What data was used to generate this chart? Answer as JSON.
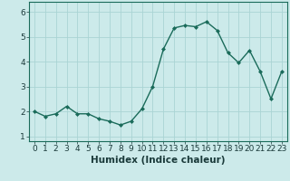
{
  "x": [
    0,
    1,
    2,
    3,
    4,
    5,
    6,
    7,
    8,
    9,
    10,
    11,
    12,
    13,
    14,
    15,
    16,
    17,
    18,
    19,
    20,
    21,
    22,
    23
  ],
  "y": [
    2.0,
    1.8,
    1.9,
    2.2,
    1.9,
    1.9,
    1.7,
    1.6,
    1.45,
    1.6,
    2.1,
    3.0,
    4.5,
    5.35,
    5.45,
    5.4,
    5.6,
    5.25,
    4.35,
    3.95,
    4.45,
    3.6,
    2.5,
    3.6
  ],
  "line_color": "#1a6b5a",
  "marker": "D",
  "marker_size": 2,
  "bg_color": "#cceaea",
  "grid_color": "#aad4d4",
  "xlabel": "Humidex (Indice chaleur)",
  "ylim": [
    0.8,
    6.4
  ],
  "yticks": [
    1,
    2,
    3,
    4,
    5,
    6
  ],
  "xticks": [
    0,
    1,
    2,
    3,
    4,
    5,
    6,
    7,
    8,
    9,
    10,
    11,
    12,
    13,
    14,
    15,
    16,
    17,
    18,
    19,
    20,
    21,
    22,
    23
  ],
  "xlim": [
    -0.5,
    23.5
  ],
  "xlabel_fontsize": 7.5,
  "tick_fontsize": 6.5,
  "line_width": 1.0
}
